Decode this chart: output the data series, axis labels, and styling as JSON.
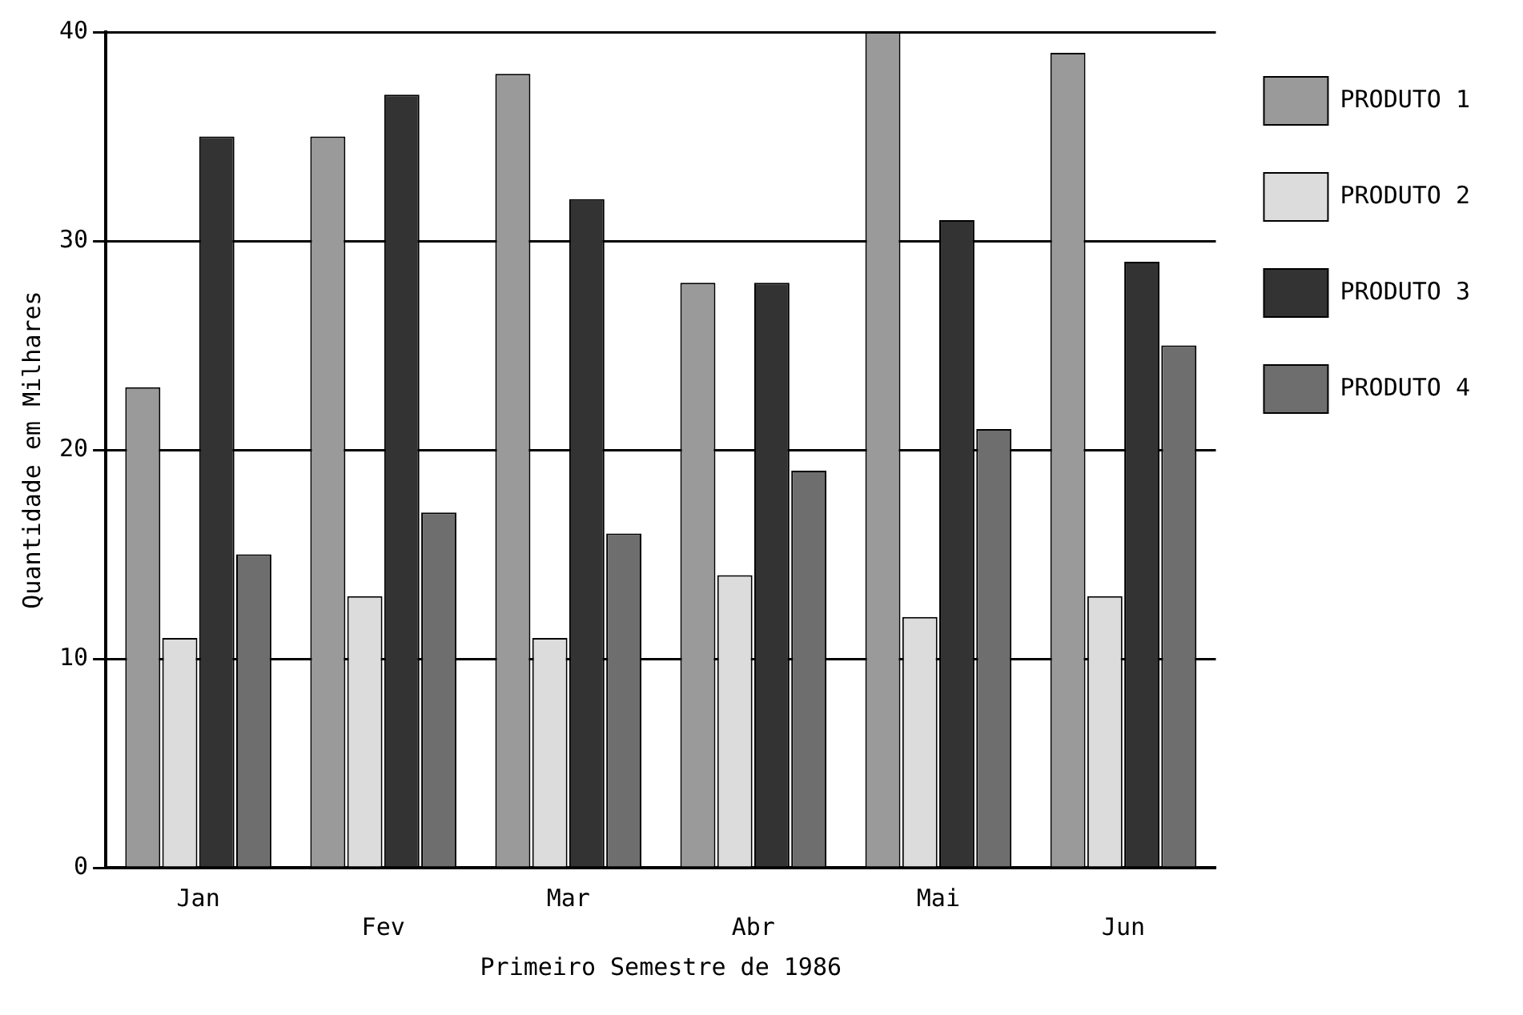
{
  "chart_data": {
    "type": "bar",
    "xlabel": "Primeiro Semestre de 1986",
    "ylabel": "Quantidade em Milhares",
    "categories": [
      "Jan",
      "Fev",
      "Mar",
      "Abr",
      "Mai",
      "Jun"
    ],
    "series": [
      {
        "name": "PRODUTO 1",
        "color": "#9a9a9a",
        "values": [
          23,
          35,
          38,
          28,
          40,
          39
        ]
      },
      {
        "name": "PRODUTO 2",
        "color": "#dcdcdc",
        "values": [
          11,
          13,
          11,
          14,
          12,
          13
        ]
      },
      {
        "name": "PRODUTO 3",
        "color": "#333333",
        "values": [
          35,
          37,
          32,
          28,
          31,
          29
        ]
      },
      {
        "name": "PRODUTO 4",
        "color": "#6e6e6e",
        "values": [
          15,
          17,
          16,
          19,
          21,
          25
        ]
      }
    ],
    "ylim": [
      0,
      40
    ],
    "yticks": [
      0,
      10,
      20,
      30,
      40
    ],
    "grid": "y",
    "legend": "right"
  }
}
